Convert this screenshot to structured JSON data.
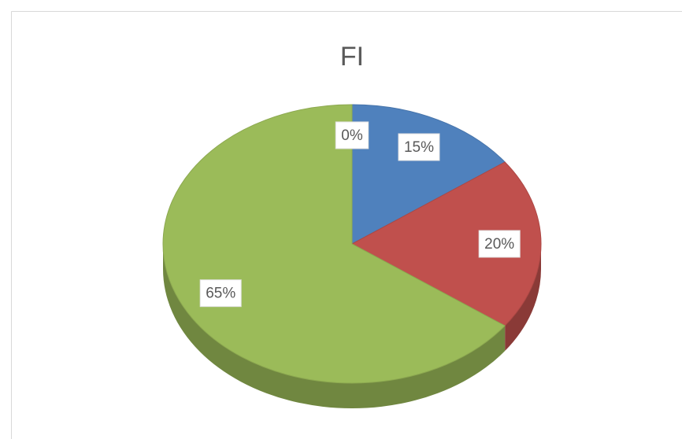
{
  "chart_data": {
    "type": "pie",
    "title": "FI",
    "values": [
      0,
      15,
      20,
      65
    ],
    "value_labels": [
      "0%",
      "15%",
      "20%",
      "65%"
    ],
    "colors": [
      "#f79646",
      "#4f81bd",
      "#c0504d",
      "#9bbb59"
    ]
  }
}
